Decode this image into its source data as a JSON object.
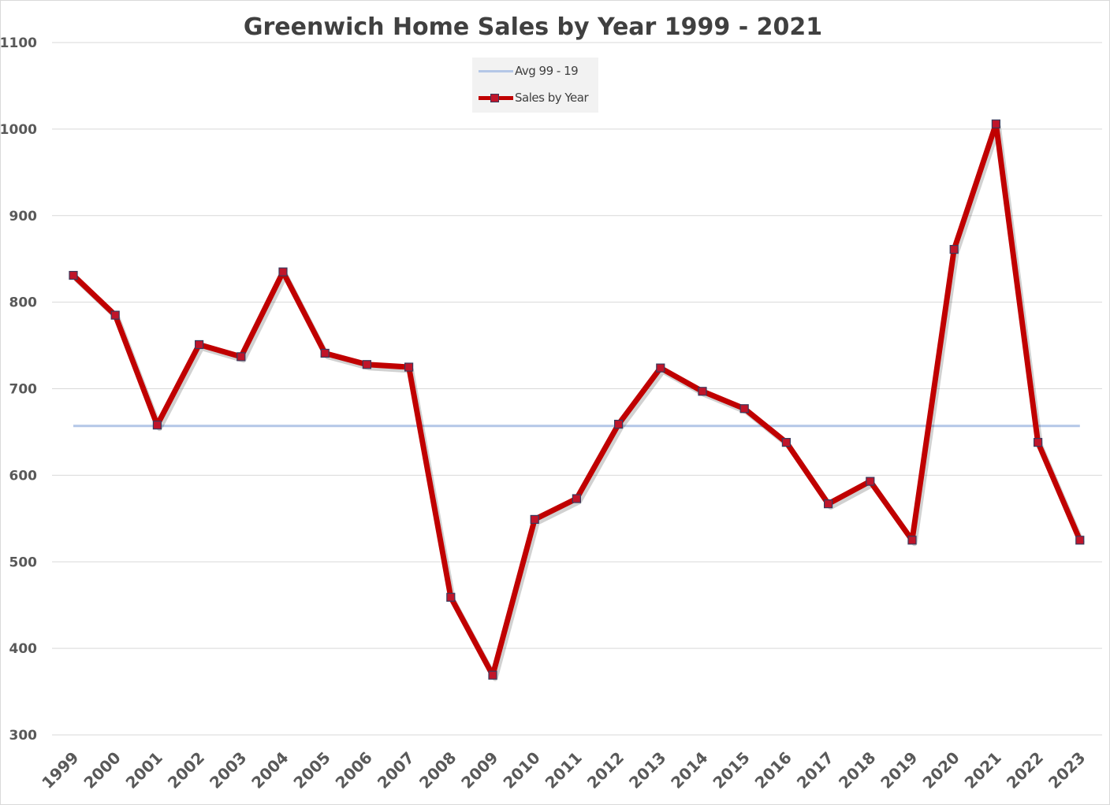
{
  "chart_data": {
    "type": "line",
    "title": "Greenwich Home Sales by Year 1999 - 2021",
    "xlabel": "",
    "ylabel": "",
    "ylim": [
      300,
      1100
    ],
    "yticks": [
      1100,
      1000,
      900,
      800,
      700,
      600,
      500,
      400,
      300
    ],
    "grid": true,
    "legend_position": "top-center",
    "categories": [
      "1999",
      "2000",
      "2001",
      "2002",
      "2003",
      "2004",
      "2005",
      "2006",
      "2007",
      "2008",
      "2009",
      "2010",
      "2011",
      "2012",
      "2013",
      "2014",
      "2015",
      "2016",
      "2017",
      "2018",
      "2019",
      "2020",
      "2021",
      "2022",
      "2023"
    ],
    "series": [
      {
        "name": "Avg 99 - 19",
        "color": "#b4c7e7",
        "values": [
          657,
          657,
          657,
          657,
          657,
          657,
          657,
          657,
          657,
          657,
          657,
          657,
          657,
          657,
          657,
          657,
          657,
          657,
          657,
          657,
          657,
          657,
          657,
          657,
          657
        ]
      },
      {
        "name": "Sales by Year",
        "color": "#c00000",
        "marker_color": "#c0152a",
        "values": [
          831,
          785,
          658,
          751,
          737,
          835,
          741,
          728,
          725,
          459,
          369,
          549,
          573,
          659,
          724,
          697,
          677,
          638,
          567,
          593,
          525,
          861,
          1006,
          638,
          525
        ]
      }
    ]
  }
}
